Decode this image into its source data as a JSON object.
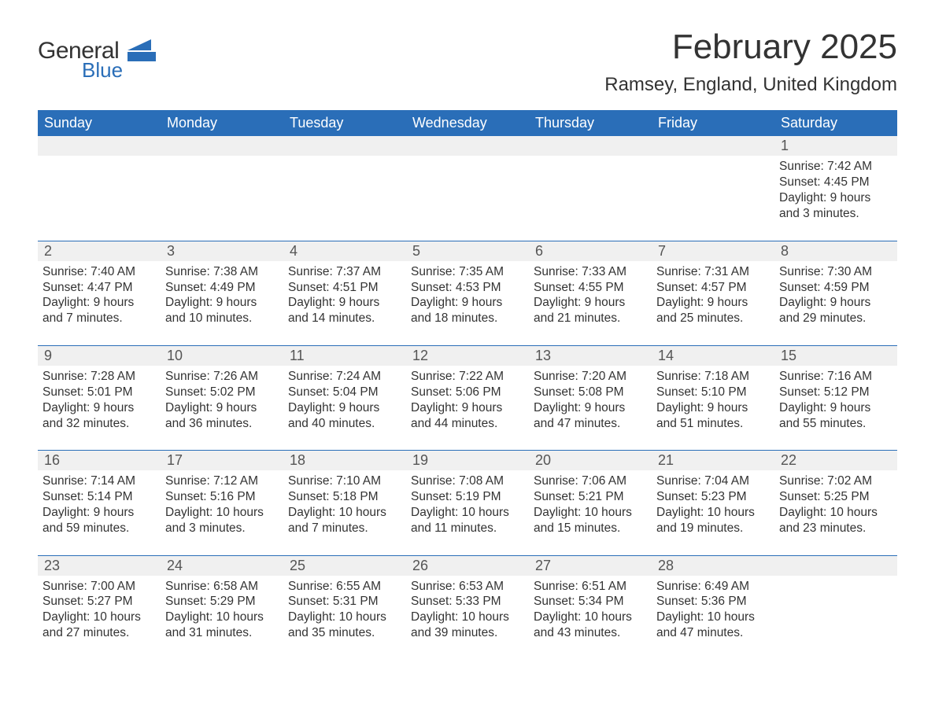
{
  "logo": {
    "word1": "General",
    "word2": "Blue"
  },
  "colors": {
    "brand_blue": "#2a6eb8",
    "header_bg": "#2a6eb8",
    "header_fg": "#ffffff",
    "daynum_bg": "#f0f0f0",
    "text": "#333333",
    "page_bg": "#ffffff"
  },
  "title": "February 2025",
  "location": "Ramsey, England, United Kingdom",
  "weekdays": [
    "Sunday",
    "Monday",
    "Tuesday",
    "Wednesday",
    "Thursday",
    "Friday",
    "Saturday"
  ],
  "layout": {
    "columns": 7,
    "rows": 5,
    "first_day_column_index": 6,
    "title_fontsize_pt": 33,
    "location_fontsize_pt": 18,
    "weekday_fontsize_pt": 13.5,
    "daynum_fontsize_pt": 13.5,
    "detail_fontsize_pt": 11.5
  },
  "weeks": [
    [
      null,
      null,
      null,
      null,
      null,
      null,
      {
        "n": "1",
        "sunrise": "Sunrise: 7:42 AM",
        "sunset": "Sunset: 4:45 PM",
        "d1": "Daylight: 9 hours",
        "d2": "and 3 minutes."
      }
    ],
    [
      {
        "n": "2",
        "sunrise": "Sunrise: 7:40 AM",
        "sunset": "Sunset: 4:47 PM",
        "d1": "Daylight: 9 hours",
        "d2": "and 7 minutes."
      },
      {
        "n": "3",
        "sunrise": "Sunrise: 7:38 AM",
        "sunset": "Sunset: 4:49 PM",
        "d1": "Daylight: 9 hours",
        "d2": "and 10 minutes."
      },
      {
        "n": "4",
        "sunrise": "Sunrise: 7:37 AM",
        "sunset": "Sunset: 4:51 PM",
        "d1": "Daylight: 9 hours",
        "d2": "and 14 minutes."
      },
      {
        "n": "5",
        "sunrise": "Sunrise: 7:35 AM",
        "sunset": "Sunset: 4:53 PM",
        "d1": "Daylight: 9 hours",
        "d2": "and 18 minutes."
      },
      {
        "n": "6",
        "sunrise": "Sunrise: 7:33 AM",
        "sunset": "Sunset: 4:55 PM",
        "d1": "Daylight: 9 hours",
        "d2": "and 21 minutes."
      },
      {
        "n": "7",
        "sunrise": "Sunrise: 7:31 AM",
        "sunset": "Sunset: 4:57 PM",
        "d1": "Daylight: 9 hours",
        "d2": "and 25 minutes."
      },
      {
        "n": "8",
        "sunrise": "Sunrise: 7:30 AM",
        "sunset": "Sunset: 4:59 PM",
        "d1": "Daylight: 9 hours",
        "d2": "and 29 minutes."
      }
    ],
    [
      {
        "n": "9",
        "sunrise": "Sunrise: 7:28 AM",
        "sunset": "Sunset: 5:01 PM",
        "d1": "Daylight: 9 hours",
        "d2": "and 32 minutes."
      },
      {
        "n": "10",
        "sunrise": "Sunrise: 7:26 AM",
        "sunset": "Sunset: 5:02 PM",
        "d1": "Daylight: 9 hours",
        "d2": "and 36 minutes."
      },
      {
        "n": "11",
        "sunrise": "Sunrise: 7:24 AM",
        "sunset": "Sunset: 5:04 PM",
        "d1": "Daylight: 9 hours",
        "d2": "and 40 minutes."
      },
      {
        "n": "12",
        "sunrise": "Sunrise: 7:22 AM",
        "sunset": "Sunset: 5:06 PM",
        "d1": "Daylight: 9 hours",
        "d2": "and 44 minutes."
      },
      {
        "n": "13",
        "sunrise": "Sunrise: 7:20 AM",
        "sunset": "Sunset: 5:08 PM",
        "d1": "Daylight: 9 hours",
        "d2": "and 47 minutes."
      },
      {
        "n": "14",
        "sunrise": "Sunrise: 7:18 AM",
        "sunset": "Sunset: 5:10 PM",
        "d1": "Daylight: 9 hours",
        "d2": "and 51 minutes."
      },
      {
        "n": "15",
        "sunrise": "Sunrise: 7:16 AM",
        "sunset": "Sunset: 5:12 PM",
        "d1": "Daylight: 9 hours",
        "d2": "and 55 minutes."
      }
    ],
    [
      {
        "n": "16",
        "sunrise": "Sunrise: 7:14 AM",
        "sunset": "Sunset: 5:14 PM",
        "d1": "Daylight: 9 hours",
        "d2": "and 59 minutes."
      },
      {
        "n": "17",
        "sunrise": "Sunrise: 7:12 AM",
        "sunset": "Sunset: 5:16 PM",
        "d1": "Daylight: 10 hours",
        "d2": "and 3 minutes."
      },
      {
        "n": "18",
        "sunrise": "Sunrise: 7:10 AM",
        "sunset": "Sunset: 5:18 PM",
        "d1": "Daylight: 10 hours",
        "d2": "and 7 minutes."
      },
      {
        "n": "19",
        "sunrise": "Sunrise: 7:08 AM",
        "sunset": "Sunset: 5:19 PM",
        "d1": "Daylight: 10 hours",
        "d2": "and 11 minutes."
      },
      {
        "n": "20",
        "sunrise": "Sunrise: 7:06 AM",
        "sunset": "Sunset: 5:21 PM",
        "d1": "Daylight: 10 hours",
        "d2": "and 15 minutes."
      },
      {
        "n": "21",
        "sunrise": "Sunrise: 7:04 AM",
        "sunset": "Sunset: 5:23 PM",
        "d1": "Daylight: 10 hours",
        "d2": "and 19 minutes."
      },
      {
        "n": "22",
        "sunrise": "Sunrise: 7:02 AM",
        "sunset": "Sunset: 5:25 PM",
        "d1": "Daylight: 10 hours",
        "d2": "and 23 minutes."
      }
    ],
    [
      {
        "n": "23",
        "sunrise": "Sunrise: 7:00 AM",
        "sunset": "Sunset: 5:27 PM",
        "d1": "Daylight: 10 hours",
        "d2": "and 27 minutes."
      },
      {
        "n": "24",
        "sunrise": "Sunrise: 6:58 AM",
        "sunset": "Sunset: 5:29 PM",
        "d1": "Daylight: 10 hours",
        "d2": "and 31 minutes."
      },
      {
        "n": "25",
        "sunrise": "Sunrise: 6:55 AM",
        "sunset": "Sunset: 5:31 PM",
        "d1": "Daylight: 10 hours",
        "d2": "and 35 minutes."
      },
      {
        "n": "26",
        "sunrise": "Sunrise: 6:53 AM",
        "sunset": "Sunset: 5:33 PM",
        "d1": "Daylight: 10 hours",
        "d2": "and 39 minutes."
      },
      {
        "n": "27",
        "sunrise": "Sunrise: 6:51 AM",
        "sunset": "Sunset: 5:34 PM",
        "d1": "Daylight: 10 hours",
        "d2": "and 43 minutes."
      },
      {
        "n": "28",
        "sunrise": "Sunrise: 6:49 AM",
        "sunset": "Sunset: 5:36 PM",
        "d1": "Daylight: 10 hours",
        "d2": "and 47 minutes."
      },
      null
    ]
  ]
}
